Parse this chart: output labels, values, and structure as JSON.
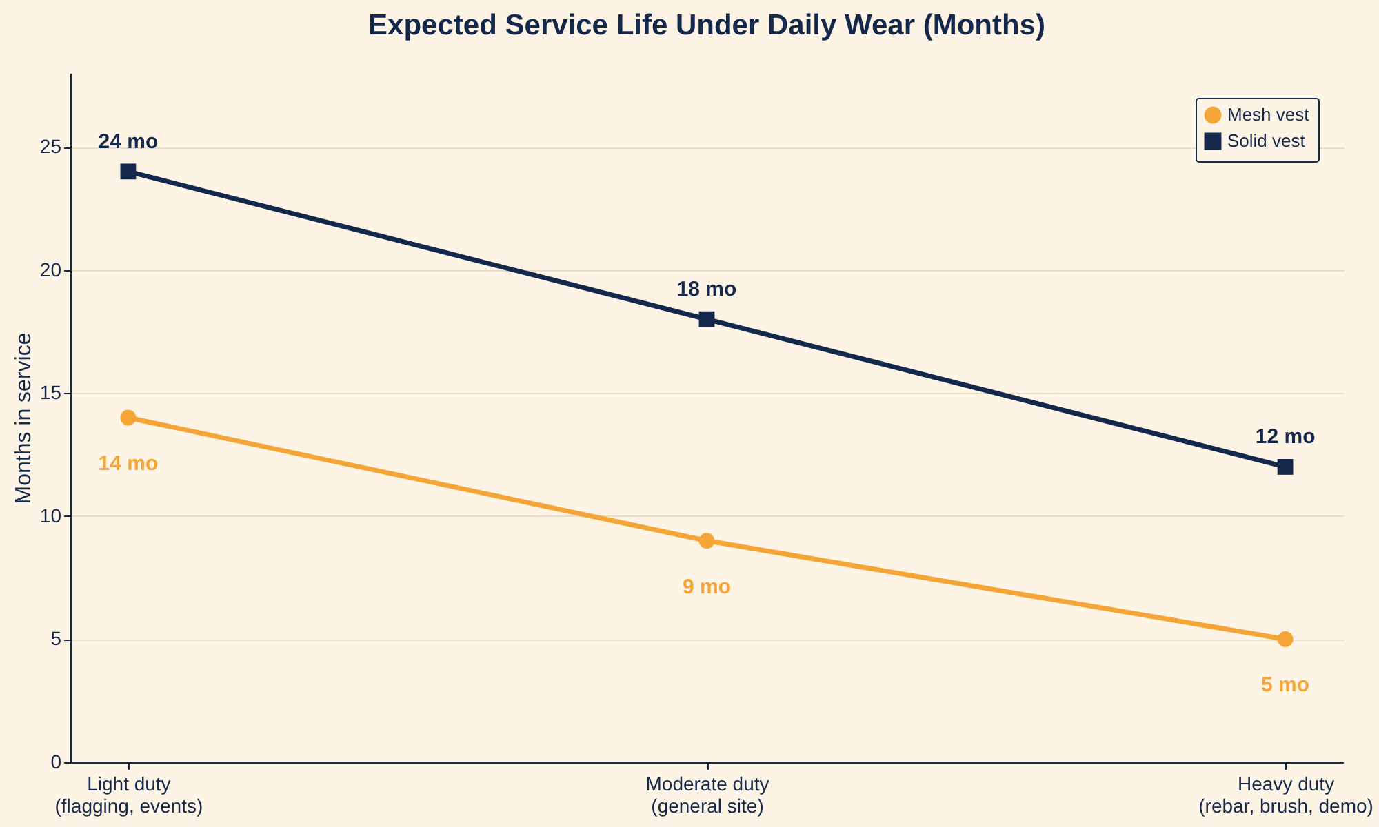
{
  "chart_data": {
    "type": "line",
    "title": "Expected Service Life Under Daily Wear (Months)",
    "ylabel": "Months in service",
    "categories": [
      "Light duty\n(flagging, events)",
      "Moderate duty\n(general site)",
      "Heavy duty\n(rebar, brush, demo)"
    ],
    "series": [
      {
        "name": "Mesh vest",
        "color": "#f4a535",
        "marker": "circle",
        "values": [
          14,
          9,
          5
        ],
        "value_labels": [
          "14 mo",
          "9 mo",
          "5 mo"
        ]
      },
      {
        "name": "Solid vest",
        "color": "#14284b",
        "marker": "square",
        "values": [
          24,
          18,
          12
        ],
        "value_labels": [
          "24 mo",
          "18 mo",
          "12 mo"
        ]
      }
    ],
    "ylim": [
      0,
      28
    ],
    "yticks": [
      0,
      5,
      10,
      15,
      20,
      25
    ],
    "grid": "y",
    "legend": "top right"
  }
}
